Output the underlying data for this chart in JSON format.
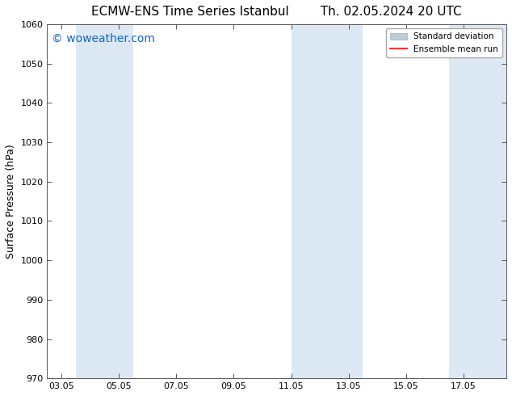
{
  "title": "ECMW-ENS Time Series Istanbul        Th. 02.05.2024 20 UTC",
  "ylabel": "Surface Pressure (hPa)",
  "ylim": [
    970,
    1060
  ],
  "yticks": [
    970,
    980,
    990,
    1000,
    1010,
    1020,
    1030,
    1040,
    1050,
    1060
  ],
  "xtick_labels": [
    "03.05",
    "05.05",
    "07.05",
    "09.05",
    "11.05",
    "13.05",
    "15.05",
    "17.05"
  ],
  "xtick_positions": [
    0,
    2,
    4,
    6,
    8,
    10,
    12,
    14
  ],
  "xlim": [
    -0.5,
    15.5
  ],
  "shaded_bands": [
    {
      "x_start": 0.5,
      "x_end": 2.5
    },
    {
      "x_start": 8.0,
      "x_end": 10.5
    },
    {
      "x_start": 13.5,
      "x_end": 15.5
    }
  ],
  "shade_color": "#DCE9F5",
  "watermark_text": "© woweather.com",
  "watermark_color": "#1565C0",
  "legend_std_label": "Standard deviation",
  "legend_ens_label": "Ensemble mean run",
  "legend_std_color": "#BBCCDD",
  "legend_ens_color": "#FF3333",
  "bg_color": "#FFFFFF",
  "title_fontsize": 11,
  "tick_fontsize": 8,
  "ylabel_fontsize": 9,
  "watermark_fontsize": 10
}
